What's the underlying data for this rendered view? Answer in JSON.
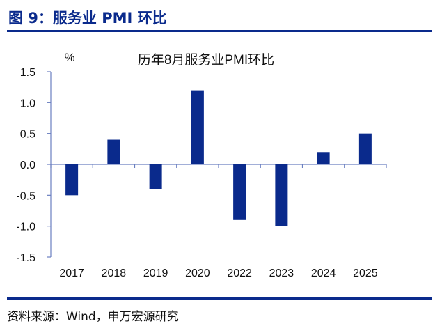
{
  "figure": {
    "title": "图 9：服务业 PMI 环比",
    "source": "资料来源：Wind，申万宏源研究"
  },
  "colors": {
    "accent": "#0a2a8c",
    "bar": "#0a2a8c",
    "axis": "#6a7fc0"
  },
  "chart_data": {
    "type": "bar",
    "title": "历年8月服务业PMI环比",
    "unit_label": "%",
    "categories": [
      "2017",
      "2018",
      "2019",
      "2020",
      "2022",
      "2023",
      "2024",
      "2025"
    ],
    "series": [
      {
        "values": [
          -0.5,
          0.4,
          -0.4,
          1.2,
          -0.9,
          -1.0,
          0.2,
          0.5
        ]
      }
    ],
    "ylim": [
      -1.5,
      1.5
    ],
    "yticks": [
      "1.5",
      "1.0",
      "0.5",
      "0.0",
      "-0.5",
      "-1.0",
      "-1.5"
    ],
    "grid": false,
    "legend": "none"
  }
}
